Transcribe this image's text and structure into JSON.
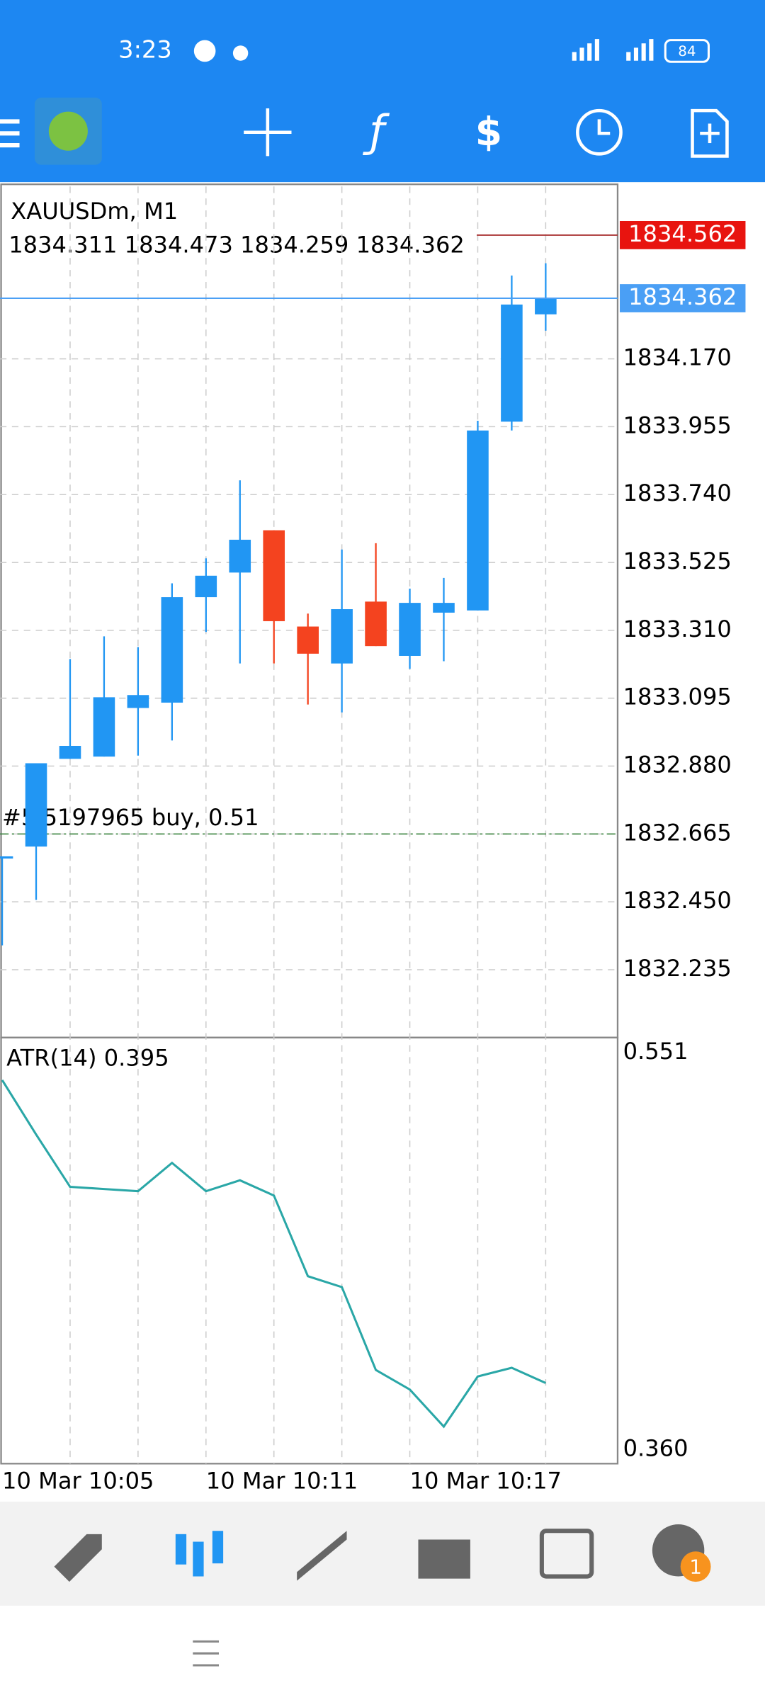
{
  "status_bar": {
    "time": "3:23",
    "battery": "84"
  },
  "chart_data": [
    {
      "type": "candlestick",
      "title": "XAUUSDm, M1",
      "subtitle": "1834.311 1834.473 1834.259 1834.362",
      "categories": [
        "10 Mar 10:05",
        null,
        null,
        null,
        null,
        null,
        "10 Mar 10:11",
        null,
        null,
        null,
        null,
        null,
        "10 Mar 10:17",
        null,
        null,
        null,
        null
      ],
      "open": [
        1832.587,
        1832.625,
        1832.903,
        1832.91,
        1833.064,
        1833.081,
        1833.415,
        1833.493,
        1833.627,
        1833.322,
        1833.205,
        1833.401,
        1833.229,
        1833.366,
        1833.373,
        1833.971,
        1834.311
      ],
      "high": [
        1832.594,
        1832.889,
        1833.219,
        1833.291,
        1833.257,
        1833.459,
        1833.538,
        1833.785,
        1833.627,
        1833.363,
        1833.566,
        1833.586,
        1833.442,
        1833.476,
        1833.974,
        1834.434,
        1834.473
      ],
      "low": [
        1832.312,
        1832.456,
        1832.903,
        1832.91,
        1832.913,
        1832.961,
        1833.305,
        1833.205,
        1833.205,
        1833.075,
        1833.05,
        1833.26,
        1833.188,
        1833.212,
        1833.373,
        1833.943,
        1834.259
      ],
      "close": [
        1832.594,
        1832.889,
        1832.944,
        1833.098,
        1833.105,
        1833.415,
        1833.483,
        1833.597,
        1833.339,
        1833.236,
        1833.377,
        1833.26,
        1833.397,
        1833.397,
        1833.943,
        1834.342,
        1834.362
      ],
      "bull_color": "#2196f3",
      "bear_color": "#f4431f",
      "ylim": [
        1832.02,
        1834.716
      ],
      "yticks": [
        {
          "value": 1834.17,
          "label": "1834.170"
        },
        1833.955,
        {
          "value": 1833.74,
          "label": "1833.740"
        },
        1833.525,
        {
          "value": 1833.31,
          "label": "1833.310"
        },
        1833.095,
        {
          "value": 1832.88,
          "label": "1832.880"
        },
        1832.665,
        {
          "value": 1832.45,
          "label": "1832.450"
        },
        1832.235
      ],
      "grid": true,
      "bid": 1834.362,
      "ask": 1834.562,
      "order": {
        "label": "#5 5197965 buy, 0.51",
        "value": 1832.665
      }
    },
    {
      "type": "line",
      "title": "ATR(14) 0.395",
      "color": "#2aa7a7",
      "values": [
        0.534,
        0.509,
        0.485,
        0.484,
        0.483,
        0.496,
        0.483,
        0.488,
        0.481,
        0.444,
        0.439,
        0.401,
        0.392,
        0.375,
        0.398,
        0.402,
        0.395
      ],
      "ylim": [
        0.36,
        0.551
      ],
      "yticks": [
        0.551,
        {
          "value": 0.36,
          "label": "0.360"
        }
      ]
    }
  ],
  "nav_badge": "1"
}
